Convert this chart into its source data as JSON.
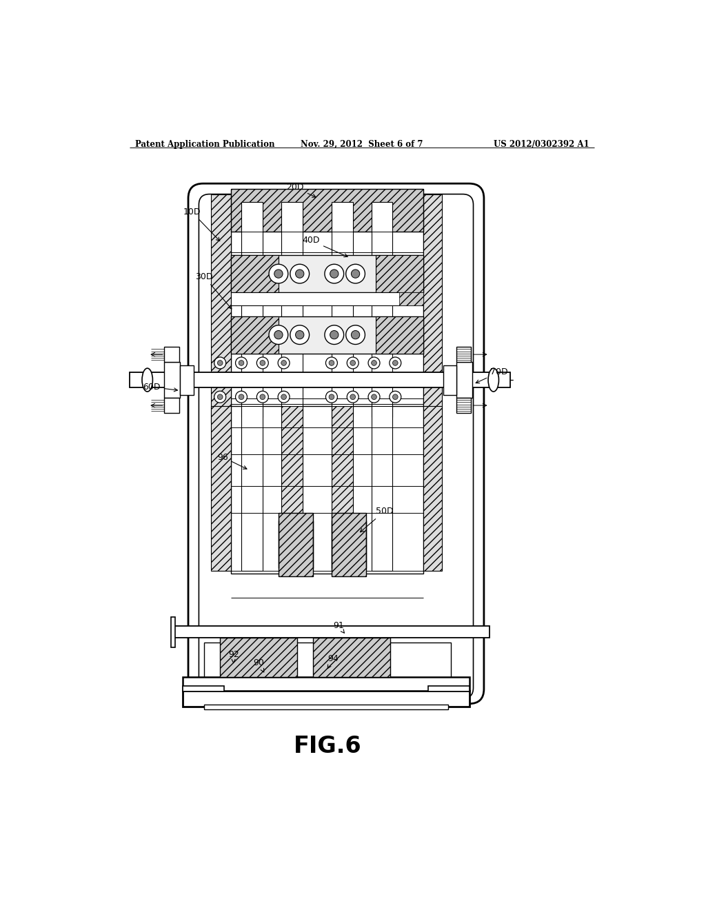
{
  "title_left": "Patent Application Publication",
  "title_mid": "Nov. 29, 2012  Sheet 6 of 7",
  "title_right": "US 2012/0302392 A1",
  "fig_label": "FIG.6",
  "bg_color": "#ffffff",
  "line_color": "#000000",
  "gray_light": "#cccccc",
  "gray_med": "#aaaaaa",
  "gray_dark": "#888888"
}
